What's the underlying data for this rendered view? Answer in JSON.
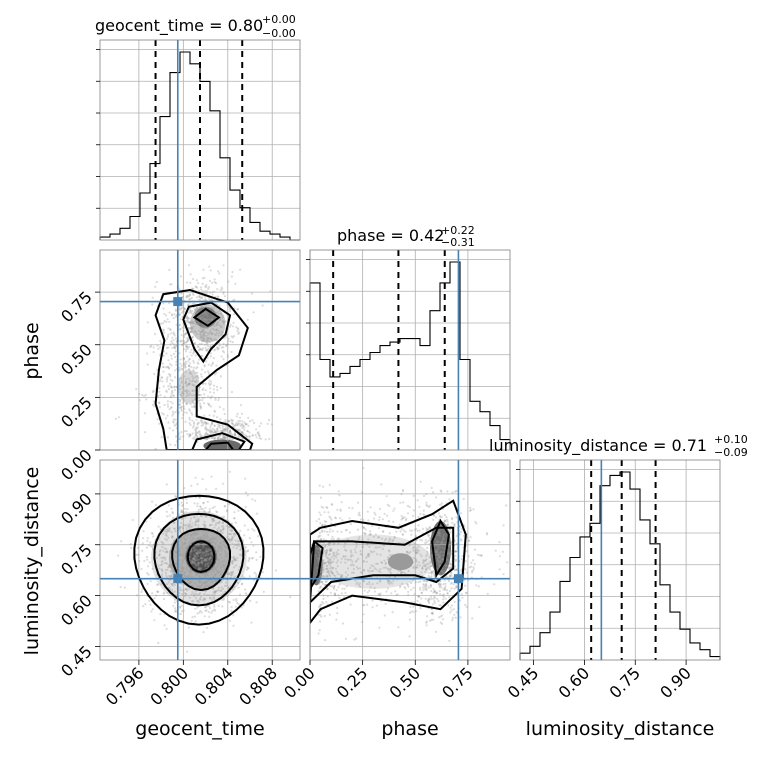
{
  "chart_data": {
    "type": "corner",
    "parameters": [
      "geocent_time",
      "phase",
      "luminosity_distance"
    ],
    "truths": {
      "geocent_time": 0.7995,
      "phase": 0.705,
      "luminosity_distance": 0.65
    },
    "axes": {
      "geocent_time": {
        "range": [
          0.7925,
          0.8105
        ],
        "ticks": [
          0.796,
          0.8,
          0.804,
          0.808
        ],
        "tick_labels": [
          "0.796",
          "0.800",
          "0.804",
          "0.808"
        ],
        "label": "geocent_time"
      },
      "phase": {
        "range": [
          0.0,
          0.95
        ],
        "ticks": [
          0.0,
          0.25,
          0.5,
          0.75
        ],
        "tick_labels": [
          "0.00",
          "0.25",
          "0.50",
          "0.75"
        ],
        "label": "phase"
      },
      "luminosity_distance": {
        "range": [
          0.41,
          1.0
        ],
        "ticks": [
          0.45,
          0.6,
          0.75,
          0.9
        ],
        "tick_labels": [
          "0.45",
          "0.60",
          "0.75",
          "0.90"
        ],
        "label": "luminosity_distance"
      }
    },
    "titles": [
      {
        "param": "geocent_time",
        "prefix": "geocent_time = 0.80",
        "upper": "+0.00",
        "lower": "−0.00"
      },
      {
        "param": "phase",
        "prefix": "phase = 0.42",
        "upper": "+0.22",
        "lower": "−0.31"
      },
      {
        "param": "luminosity_distance",
        "prefix": "luminosity_distance = 0.71",
        "upper": "+0.10",
        "lower": "−0.09"
      }
    ],
    "histograms": {
      "geocent_time": {
        "edges": [
          0.7925,
          0.7934,
          0.7943,
          0.7952,
          0.7961,
          0.797,
          0.7979,
          0.7988,
          0.7997,
          0.8006,
          0.8015,
          0.8024,
          0.8033,
          0.8042,
          0.8051,
          0.806,
          0.8069,
          0.8078,
          0.8087,
          0.8096,
          0.8105
        ],
        "counts": [
          1,
          2,
          4,
          8,
          16,
          26,
          42,
          57,
          64,
          60,
          54,
          44,
          28,
          17,
          11,
          6,
          3,
          2,
          1,
          0
        ]
      },
      "phase": {
        "edges": [
          0.0,
          0.0475,
          0.095,
          0.1425,
          0.19,
          0.2375,
          0.285,
          0.3325,
          0.38,
          0.4275,
          0.475,
          0.5225,
          0.57,
          0.6175,
          0.665,
          0.7125,
          0.76,
          0.8075,
          0.855,
          0.9025,
          0.95
        ],
        "counts": [
          48,
          26,
          21,
          22,
          24,
          26,
          28,
          30,
          31,
          32,
          32,
          30,
          40,
          48,
          54,
          26,
          14,
          11,
          7,
          3
        ]
      },
      "luminosity_distance": {
        "edges": [
          0.41,
          0.4395,
          0.469,
          0.4985,
          0.528,
          0.5575,
          0.587,
          0.6165,
          0.646,
          0.6755,
          0.705,
          0.7345,
          0.764,
          0.7935,
          0.823,
          0.8525,
          0.882,
          0.9115,
          0.941,
          0.9705,
          1.0
        ],
        "counts": [
          2,
          4,
          8,
          14,
          23,
          30,
          36,
          40,
          51,
          54,
          55,
          50,
          41,
          34,
          22,
          14,
          9,
          5,
          3,
          1
        ]
      }
    },
    "quantiles": {
      "geocent_time": [
        0.7975,
        0.8015,
        0.8053
      ],
      "phase": [
        0.11,
        0.42,
        0.64
      ],
      "luminosity_distance": [
        0.62,
        0.71,
        0.81
      ]
    },
    "grid": true
  }
}
